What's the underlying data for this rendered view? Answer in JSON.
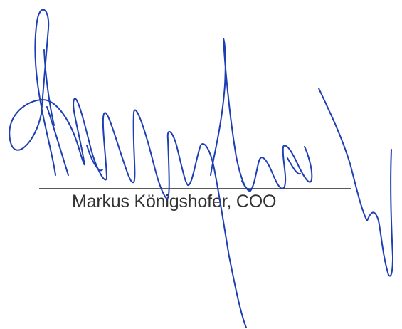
{
  "signature": {
    "signer_caption": "Markus Königshofer, COO",
    "ink_color": "#1e3fb4",
    "line_color": "#5a5a5a",
    "caption_color": "#333333"
  }
}
